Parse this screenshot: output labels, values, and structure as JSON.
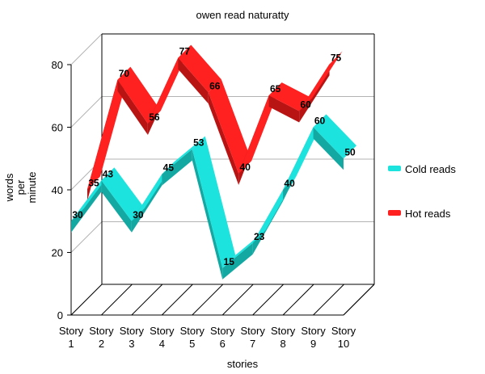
{
  "chart_data": {
    "type": "line",
    "style": "3d-ribbon",
    "title": "owen read naturatty",
    "xlabel": "stories",
    "ylabel": [
      "words",
      "per",
      "minute"
    ],
    "categories": [
      [
        "Story",
        "1"
      ],
      [
        "Story",
        "2"
      ],
      [
        "Story",
        "3"
      ],
      [
        "Story",
        "4"
      ],
      [
        "Story",
        "5"
      ],
      [
        "Story",
        "6"
      ],
      [
        "Story",
        "7"
      ],
      [
        "Story",
        "8"
      ],
      [
        "Story",
        "9"
      ],
      [
        "Story",
        "10"
      ]
    ],
    "ylim": [
      0,
      80
    ],
    "yticks": [
      0,
      20,
      40,
      60,
      80
    ],
    "grid": true,
    "legend_position": "right",
    "series": [
      {
        "name": "Cold reads",
        "color": "#1de3de",
        "shade": "#14a8a3",
        "values": [
          30,
          43,
          30,
          45,
          53,
          15,
          23,
          40,
          60,
          50
        ]
      },
      {
        "name": "Hot reads",
        "color": "#ff2020",
        "shade": "#b81414",
        "values": [
          35,
          70,
          56,
          77,
          66,
          40,
          65,
          60,
          75,
          null
        ]
      }
    ]
  }
}
